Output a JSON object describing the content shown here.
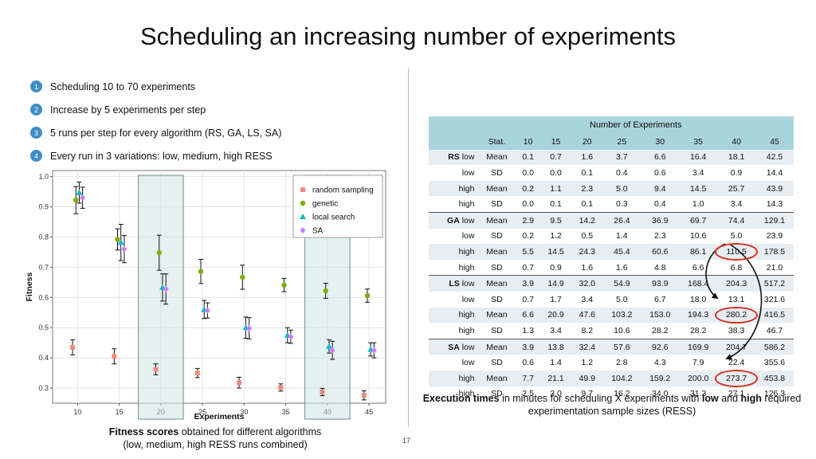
{
  "slide": {
    "title": "Scheduling an increasing number of experiments",
    "page_number": "17",
    "bullets": [
      {
        "num": "1",
        "text": "Scheduling 10 to 70 experiments"
      },
      {
        "num": "2",
        "text": "Increase by 5 experiments per step"
      },
      {
        "num": "3",
        "text": "5 runs per step for every algorithm (RS, GA, LS, SA)"
      },
      {
        "num": "4",
        "text": "Every run in 3 variations: low, medium, high RESS"
      }
    ],
    "left_caption_bold": "Fitness scores",
    "left_caption_rest": " obtained for different algorithms",
    "left_caption_line2": "(low, medium, high RESS runs combined)",
    "right_caption_part1": "Execution times",
    "right_caption_part2": " in minutes for scheduling X experiments with ",
    "right_caption_part3": "low",
    "right_caption_part4": " and ",
    "right_caption_part5": "high",
    "right_caption_part6": " required",
    "right_caption_line2": "experimentation sample sizes (RESS)"
  },
  "colors": {
    "bullet_circle": "#3b8ec7",
    "random_sampling": "#f08a80",
    "genetic": "#7cae00",
    "local_search": "#19b8c6",
    "sa": "#c77cff",
    "highlight_band": "#cfe5e5",
    "table_header": "#a9d4dc",
    "table_shade": "#e6eef4",
    "circle_highlight": "#d8301e"
  },
  "chart_data": {
    "type": "scatter",
    "xlabel": "Experiments",
    "ylabel": "Fitness",
    "x_ticks": [
      "10",
      "15",
      "20",
      "25",
      "30",
      "35",
      "40",
      "45"
    ],
    "y_ticks": [
      "0.3",
      "0.4",
      "0.5",
      "0.6",
      "0.7",
      "0.8",
      "0.9",
      "1.0"
    ],
    "xlim": [
      7,
      47
    ],
    "ylim": [
      0.25,
      1.02
    ],
    "highlighted_x": [
      20,
      40
    ],
    "legend": [
      "random sampling",
      "genetic",
      "local search",
      "SA"
    ],
    "legend_position": "top-right",
    "series": [
      {
        "name": "random sampling",
        "marker": "square",
        "x": [
          10,
          15,
          20,
          25,
          30,
          35,
          40,
          45
        ],
        "y": [
          0.435,
          0.405,
          0.362,
          0.35,
          0.318,
          0.302,
          0.287,
          0.276
        ],
        "err": [
          0.025,
          0.025,
          0.018,
          0.015,
          0.018,
          0.012,
          0.012,
          0.015
        ]
      },
      {
        "name": "genetic",
        "marker": "circle",
        "x": [
          10,
          15,
          20,
          25,
          30,
          35,
          40,
          45
        ],
        "y": [
          0.922,
          0.792,
          0.748,
          0.686,
          0.667,
          0.641,
          0.622,
          0.606
        ],
        "err": [
          0.045,
          0.035,
          0.058,
          0.04,
          0.04,
          0.022,
          0.025,
          0.022
        ]
      },
      {
        "name": "local search",
        "marker": "triangle",
        "x": [
          10,
          15,
          20,
          25,
          30,
          35,
          40,
          45
        ],
        "y": [
          0.947,
          0.782,
          0.633,
          0.56,
          0.5,
          0.475,
          0.438,
          0.428
        ],
        "err": [
          0.035,
          0.06,
          0.045,
          0.03,
          0.035,
          0.025,
          0.022,
          0.022
        ]
      },
      {
        "name": "SA",
        "marker": "diamond",
        "x": [
          10,
          15,
          20,
          25,
          30,
          35,
          40,
          45
        ],
        "y": [
          0.93,
          0.76,
          0.628,
          0.557,
          0.498,
          0.47,
          0.425,
          0.425
        ],
        "err": [
          0.035,
          0.045,
          0.05,
          0.025,
          0.035,
          0.022,
          0.03,
          0.025
        ]
      }
    ]
  },
  "table": {
    "group_header": "Number of Experiments",
    "columns": [
      "Stat.",
      "10",
      "15",
      "20",
      "25",
      "30",
      "35",
      "40",
      "45"
    ],
    "rows": [
      {
        "algo": "RS",
        "ress": "low",
        "stat": "Mean",
        "vals": [
          "0.1",
          "0.7",
          "1.6",
          "3.7",
          "6.6",
          "16.4",
          "18.1",
          "42.5"
        ]
      },
      {
        "algo": "",
        "ress": "low",
        "stat": "SD",
        "vals": [
          "0.0",
          "0.0",
          "0.1",
          "0.4",
          "0.6",
          "3.4",
          "0.9",
          "14.4"
        ]
      },
      {
        "algo": "",
        "ress": "high",
        "stat": "Mean",
        "vals": [
          "0.2",
          "1.1",
          "2.3",
          "5.0",
          "9.4",
          "14.5",
          "25.7",
          "43.9"
        ]
      },
      {
        "algo": "",
        "ress": "high",
        "stat": "SD",
        "vals": [
          "0.0",
          "0.1",
          "0.1",
          "0.3",
          "0.4",
          "1.0",
          "3.4",
          "14.3"
        ]
      },
      {
        "algo": "GA",
        "ress": "low",
        "stat": "Mean",
        "vals": [
          "2.9",
          "9.5",
          "14.2",
          "26.4",
          "36.9",
          "69.7",
          "74.4",
          "129.1"
        ]
      },
      {
        "algo": "",
        "ress": "low",
        "stat": "SD",
        "vals": [
          "0.2",
          "1.2",
          "0.5",
          "1.4",
          "2.3",
          "10.6",
          "5.0",
          "23.9"
        ]
      },
      {
        "algo": "",
        "ress": "high",
        "stat": "Mean",
        "vals": [
          "5.5",
          "14.5",
          "24.3",
          "45.4",
          "60.6",
          "86.1",
          "110.5",
          "178.5"
        ]
      },
      {
        "algo": "",
        "ress": "high",
        "stat": "SD",
        "vals": [
          "0.7",
          "0.9",
          "1.6",
          "1.6",
          "4.8",
          "6.6",
          "6.8",
          "21.0"
        ]
      },
      {
        "algo": "LS",
        "ress": "low",
        "stat": "Mean",
        "vals": [
          "3.9",
          "14.9",
          "32.0",
          "54.9",
          "93.9",
          "168.4",
          "204.3",
          "517.2"
        ]
      },
      {
        "algo": "",
        "ress": "low",
        "stat": "SD",
        "vals": [
          "0.7",
          "1.7",
          "3.4",
          "5.0",
          "6.7",
          "18.0",
          "13.1",
          "321.6"
        ]
      },
      {
        "algo": "",
        "ress": "high",
        "stat": "Mean",
        "vals": [
          "6.6",
          "20.9",
          "47.6",
          "103.2",
          "153.0",
          "194.3",
          "280.2",
          "416.5"
        ]
      },
      {
        "algo": "",
        "ress": "high",
        "stat": "SD",
        "vals": [
          "1.3",
          "3.4",
          "8.2",
          "10.6",
          "28.2",
          "28.2",
          "38.3",
          "46.7"
        ]
      },
      {
        "algo": "SA",
        "ress": "low",
        "stat": "Mean",
        "vals": [
          "3.9",
          "13.8",
          "32.4",
          "57.6",
          "92.6",
          "169.9",
          "204.7",
          "586.2"
        ]
      },
      {
        "algo": "",
        "ress": "low",
        "stat": "SD",
        "vals": [
          "0.6",
          "1.4",
          "1.2",
          "2.8",
          "4.3",
          "7.9",
          "22.4",
          "355.6"
        ]
      },
      {
        "algo": "",
        "ress": "high",
        "stat": "Mean",
        "vals": [
          "7.7",
          "21.1",
          "49.9",
          "104.2",
          "159.2",
          "200.0",
          "273.7",
          "453.8"
        ]
      },
      {
        "algo": "",
        "ress": "high",
        "stat": "SD",
        "vals": [
          "2.5",
          "3.0",
          "9.7",
          "16.2",
          "34.0",
          "31.3",
          "27.1",
          "126.3"
        ]
      }
    ],
    "circled_cells": [
      "GA high Mean 40",
      "LS high Mean 40",
      "SA high Mean 40"
    ]
  }
}
